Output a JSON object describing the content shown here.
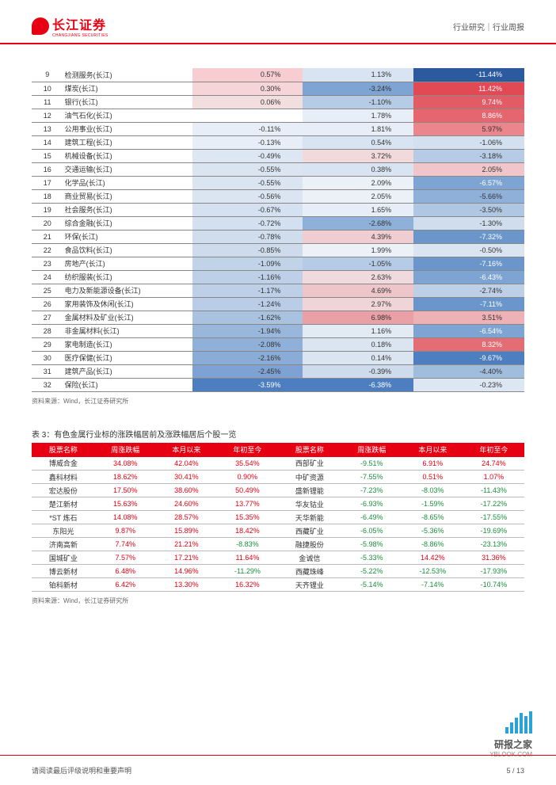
{
  "header": {
    "logo_cn": "长江证券",
    "logo_en": "CHANGJIANG SECURITIES",
    "right_text": "行业研究｜行业周报"
  },
  "table1": {
    "rows": [
      {
        "idx": "9",
        "name": "检测服务(长江)",
        "v1": {
          "t": "0.57%",
          "bg": "#f7cdd1"
        },
        "v2": {
          "t": "1.13%",
          "bg": "#d9e4f2"
        },
        "v3": {
          "t": "-11.44%",
          "bg": "#2c5a9e",
          "fg": "#ffffff"
        }
      },
      {
        "idx": "10",
        "name": "煤炭(长江)",
        "v1": {
          "t": "0.30%",
          "bg": "#f5d5d8"
        },
        "v2": {
          "t": "-3.24%",
          "bg": "#7ea4d3"
        },
        "v3": {
          "t": "11.42%",
          "bg": "#e14a55",
          "fg": "#ffffff"
        }
      },
      {
        "idx": "11",
        "name": "银行(长江)",
        "v1": {
          "t": "0.06%",
          "bg": "#f2dddf"
        },
        "v2": {
          "t": "-1.10%",
          "bg": "#b6cbe5"
        },
        "v3": {
          "t": "9.74%",
          "bg": "#e35b64",
          "fg": "#ffffff"
        }
      },
      {
        "idx": "12",
        "name": "油气石化(长江)",
        "v1": {
          "t": "",
          "bg": "#ffffff"
        },
        "v2": {
          "t": "1.78%",
          "bg": "#e8eef7"
        },
        "v3": {
          "t": "8.86%",
          "bg": "#e5666e",
          "fg": "#ffffff"
        }
      },
      {
        "idx": "13",
        "name": "公用事业(长江)",
        "v1": {
          "t": "-0.11%",
          "bg": "#e8eef7"
        },
        "v2": {
          "t": "1.81%",
          "bg": "#e8eef7"
        },
        "v3": {
          "t": "5.97%",
          "bg": "#ea868c"
        }
      },
      {
        "idx": "14",
        "name": "建筑工程(长江)",
        "v1": {
          "t": "-0.13%",
          "bg": "#e8eef7"
        },
        "v2": {
          "t": "0.54%",
          "bg": "#d9e4f2"
        },
        "v3": {
          "t": "-1.06%",
          "bg": "#d3e0ef"
        }
      },
      {
        "idx": "15",
        "name": "机械设备(长江)",
        "v1": {
          "t": "-0.49%",
          "bg": "#dde7f3"
        },
        "v2": {
          "t": "3.72%",
          "bg": "#f2d9db"
        },
        "v3": {
          "t": "-3.18%",
          "bg": "#b6cbe5"
        }
      },
      {
        "idx": "16",
        "name": "交通运输(长江)",
        "v1": {
          "t": "-0.55%",
          "bg": "#dbe5f2"
        },
        "v2": {
          "t": "0.38%",
          "bg": "#d9e4f2"
        },
        "v3": {
          "t": "2.05%",
          "bg": "#f0c6ca"
        }
      },
      {
        "idx": "17",
        "name": "化学品(长江)",
        "v1": {
          "t": "-0.55%",
          "bg": "#dbe5f2"
        },
        "v2": {
          "t": "2.09%",
          "bg": "#ecf1f8"
        },
        "v3": {
          "t": "-6.57%",
          "bg": "#7ea4d3",
          "fg": "#ffffff"
        }
      },
      {
        "idx": "18",
        "name": "商业贸易(长江)",
        "v1": {
          "t": "-0.56%",
          "bg": "#dbe5f2"
        },
        "v2": {
          "t": "2.05%",
          "bg": "#ecf1f8"
        },
        "v3": {
          "t": "-5.66%",
          "bg": "#8fb0d9"
        }
      },
      {
        "idx": "19",
        "name": "社会服务(长江)",
        "v1": {
          "t": "-0.67%",
          "bg": "#d5e1f0"
        },
        "v2": {
          "t": "1.65%",
          "bg": "#e8eef7"
        },
        "v3": {
          "t": "-3.50%",
          "bg": "#b0c7e3"
        }
      },
      {
        "idx": "20",
        "name": "综合金融(长江)",
        "v1": {
          "t": "-0.72%",
          "bg": "#d3e0ef"
        },
        "v2": {
          "t": "-2.68%",
          "bg": "#8fb0d9"
        },
        "v3": {
          "t": "-1.30%",
          "bg": "#cfdded"
        }
      },
      {
        "idx": "21",
        "name": "环保(长江)",
        "v1": {
          "t": "-0.78%",
          "bg": "#cfdded"
        },
        "v2": {
          "t": "4.39%",
          "bg": "#f0cdd0"
        },
        "v3": {
          "t": "-7.32%",
          "bg": "#6a96cc",
          "fg": "#ffffff"
        }
      },
      {
        "idx": "22",
        "name": "食品饮料(长江)",
        "v1": {
          "t": "-0.85%",
          "bg": "#cddbed"
        },
        "v2": {
          "t": "1.99%",
          "bg": "#ecf1f8"
        },
        "v3": {
          "t": "-0.50%",
          "bg": "#dbe5f2"
        }
      },
      {
        "idx": "23",
        "name": "房地产(长江)",
        "v1": {
          "t": "-1.09%",
          "bg": "#c1d3e9"
        },
        "v2": {
          "t": "-1.05%",
          "bg": "#b6cbe5"
        },
        "v3": {
          "t": "-7.16%",
          "bg": "#6a96cc",
          "fg": "#ffffff"
        }
      },
      {
        "idx": "24",
        "name": "纺织服装(长江)",
        "v1": {
          "t": "-1.16%",
          "bg": "#bdd0e8"
        },
        "v2": {
          "t": "2.63%",
          "bg": "#f0dadd"
        },
        "v3": {
          "t": "-6.43%",
          "bg": "#7ea4d3",
          "fg": "#ffffff"
        }
      },
      {
        "idx": "25",
        "name": "电力及新能源设备(长江)",
        "v1": {
          "t": "-1.17%",
          "bg": "#bdd0e8"
        },
        "v2": {
          "t": "4.69%",
          "bg": "#eec6ca"
        },
        "v3": {
          "t": "-2.74%",
          "bg": "#bdd0e8"
        }
      },
      {
        "idx": "26",
        "name": "家用装饰及休闲(长江)",
        "v1": {
          "t": "-1.24%",
          "bg": "#b9cde6"
        },
        "v2": {
          "t": "2.97%",
          "bg": "#f0d5d8"
        },
        "v3": {
          "t": "-7.11%",
          "bg": "#6a96cc",
          "fg": "#ffffff"
        }
      },
      {
        "idx": "27",
        "name": "金属材料及矿业(长江)",
        "v1": {
          "t": "-1.62%",
          "bg": "#a8c2e0"
        },
        "v2": {
          "t": "6.98%",
          "bg": "#e9a0a6"
        },
        "v3": {
          "t": "3.51%",
          "bg": "#eeb1b6"
        }
      },
      {
        "idx": "28",
        "name": "非金属材料(长江)",
        "v1": {
          "t": "-1.94%",
          "bg": "#99b7da"
        },
        "v2": {
          "t": "1.16%",
          "bg": "#e2eaf4"
        },
        "v3": {
          "t": "-6.54%",
          "bg": "#7ea4d3",
          "fg": "#ffffff"
        }
      },
      {
        "idx": "29",
        "name": "家电制造(长江)",
        "v1": {
          "t": "-2.08%",
          "bg": "#8fb0d9"
        },
        "v2": {
          "t": "0.18%",
          "bg": "#dbe5f2"
        },
        "v3": {
          "t": "8.32%",
          "bg": "#e46d75",
          "fg": "#ffffff"
        }
      },
      {
        "idx": "30",
        "name": "医疗保健(长江)",
        "v1": {
          "t": "-2.16%",
          "bg": "#8bacd7"
        },
        "v2": {
          "t": "0.14%",
          "bg": "#dbe5f2"
        },
        "v3": {
          "t": "-9.67%",
          "bg": "#4d7fc0",
          "fg": "#ffffff"
        }
      },
      {
        "idx": "31",
        "name": "建筑产品(长江)",
        "v1": {
          "t": "-2.45%",
          "bg": "#7da2d3"
        },
        "v2": {
          "t": "-0.39%",
          "bg": "#cddbed"
        },
        "v3": {
          "t": "-4.40%",
          "bg": "#a1bdde"
        }
      },
      {
        "idx": "32",
        "name": "保险(长江)",
        "v1": {
          "t": "-3.59%",
          "bg": "#4d7fc0",
          "fg": "#ffffff"
        },
        "v2": {
          "t": "-6.38%",
          "bg": "#4d7fc0",
          "fg": "#ffffff"
        },
        "v3": {
          "t": "-0.23%",
          "bg": "#dde7f3"
        }
      }
    ],
    "source": "资料来源：Wind，长江证券研究所"
  },
  "table2": {
    "title": "表 3：有色金属行业标的涨跌幅居前及涨跌幅居后个股一览",
    "headers": [
      "股票名称",
      "周涨跌幅",
      "本月以来",
      "年初至今",
      "股票名称",
      "周涨跌幅",
      "本月以来",
      "年初至今"
    ],
    "rows": [
      [
        "博威合金",
        {
          "t": "34.08%",
          "c": "pos"
        },
        {
          "t": "42.04%",
          "c": "pos"
        },
        {
          "t": "35.54%",
          "c": "pos"
        },
        "西部矿业",
        {
          "t": "-9.51%",
          "c": "neg"
        },
        {
          "t": "6.91%",
          "c": "pos"
        },
        {
          "t": "24.74%",
          "c": "pos"
        }
      ],
      [
        "鑫科材料",
        {
          "t": "18.62%",
          "c": "pos"
        },
        {
          "t": "30.41%",
          "c": "pos"
        },
        {
          "t": "0.90%",
          "c": "pos"
        },
        "中矿资源",
        {
          "t": "-7.55%",
          "c": "neg"
        },
        {
          "t": "0.51%",
          "c": "pos"
        },
        {
          "t": "1.07%",
          "c": "pos"
        }
      ],
      [
        "宏达股份",
        {
          "t": "17.50%",
          "c": "pos"
        },
        {
          "t": "38.60%",
          "c": "pos"
        },
        {
          "t": "50.49%",
          "c": "pos"
        },
        "盛新锂能",
        {
          "t": "-7.23%",
          "c": "neg"
        },
        {
          "t": "-8.03%",
          "c": "neg"
        },
        {
          "t": "-11.43%",
          "c": "neg"
        }
      ],
      [
        "楚江新材",
        {
          "t": "15.63%",
          "c": "pos"
        },
        {
          "t": "24.60%",
          "c": "pos"
        },
        {
          "t": "13.77%",
          "c": "pos"
        },
        "华友钴业",
        {
          "t": "-6.93%",
          "c": "neg"
        },
        {
          "t": "-1.59%",
          "c": "neg"
        },
        {
          "t": "-17.22%",
          "c": "neg"
        }
      ],
      [
        "*ST 炼石",
        {
          "t": "14.08%",
          "c": "pos"
        },
        {
          "t": "28.57%",
          "c": "pos"
        },
        {
          "t": "15.35%",
          "c": "pos"
        },
        "天华新能",
        {
          "t": "-6.49%",
          "c": "neg"
        },
        {
          "t": "-8.65%",
          "c": "neg"
        },
        {
          "t": "-17.55%",
          "c": "neg"
        }
      ],
      [
        "东阳光",
        {
          "t": "9.87%",
          "c": "pos"
        },
        {
          "t": "15.89%",
          "c": "pos"
        },
        {
          "t": "18.42%",
          "c": "pos"
        },
        "西藏矿业",
        {
          "t": "-6.05%",
          "c": "neg"
        },
        {
          "t": "-5.36%",
          "c": "neg"
        },
        {
          "t": "-19.69%",
          "c": "neg"
        }
      ],
      [
        "济南高新",
        {
          "t": "7.74%",
          "c": "pos"
        },
        {
          "t": "21.21%",
          "c": "pos"
        },
        {
          "t": "-8.83%",
          "c": "neg"
        },
        "融捷股份",
        {
          "t": "-5.98%",
          "c": "neg"
        },
        {
          "t": "-8.86%",
          "c": "neg"
        },
        {
          "t": "-23.13%",
          "c": "neg"
        }
      ],
      [
        "国城矿业",
        {
          "t": "7.57%",
          "c": "pos"
        },
        {
          "t": "17.21%",
          "c": "pos"
        },
        {
          "t": "11.64%",
          "c": "pos"
        },
        "金诚信",
        {
          "t": "-5.33%",
          "c": "neg"
        },
        {
          "t": "14.42%",
          "c": "pos"
        },
        {
          "t": "31.36%",
          "c": "pos"
        }
      ],
      [
        "博云新材",
        {
          "t": "6.48%",
          "c": "pos"
        },
        {
          "t": "14.96%",
          "c": "pos"
        },
        {
          "t": "-11.29%",
          "c": "neg"
        },
        "西藏珠峰",
        {
          "t": "-5.22%",
          "c": "neg"
        },
        {
          "t": "-12.53%",
          "c": "neg"
        },
        {
          "t": "-17.93%",
          "c": "neg"
        }
      ],
      [
        "铂科新材",
        {
          "t": "6.42%",
          "c": "pos"
        },
        {
          "t": "13.30%",
          "c": "pos"
        },
        {
          "t": "16.32%",
          "c": "pos"
        },
        "天齐锂业",
        {
          "t": "-5.14%",
          "c": "neg"
        },
        {
          "t": "-7.14%",
          "c": "neg"
        },
        {
          "t": "-10.74%",
          "c": "neg"
        }
      ]
    ],
    "source": "资料来源：Wind，长江证券研究所"
  },
  "footer": {
    "left": "请阅读最后评级说明和重要声明",
    "right": "5 / 13"
  },
  "watermark": {
    "bars": [
      8,
      14,
      20,
      26,
      22,
      28
    ],
    "text": "研报之家",
    "url": "YBLOOK.COM"
  }
}
